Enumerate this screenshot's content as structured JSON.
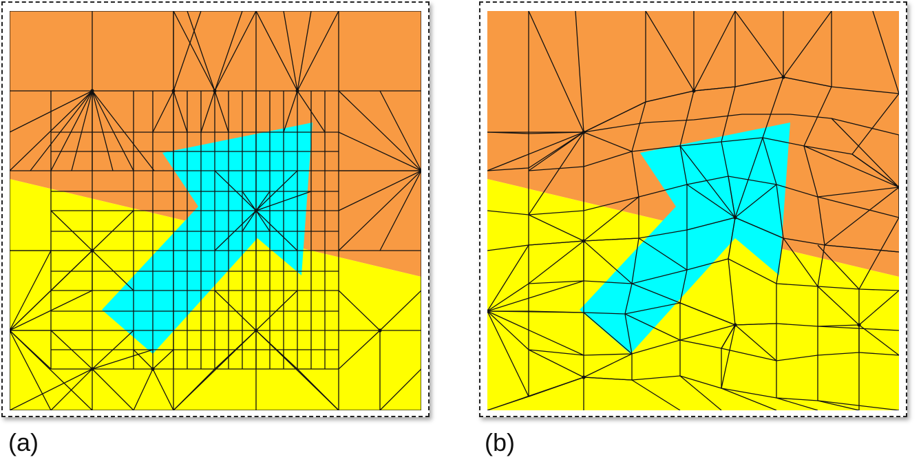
{
  "panels": [
    {
      "label": "(a)"
    },
    {
      "label": "(b)"
    }
  ],
  "colors": {
    "orange": "#f89a43",
    "yellow": "#ffff00",
    "cyan": "#00ffff",
    "edge": "#111111"
  }
}
